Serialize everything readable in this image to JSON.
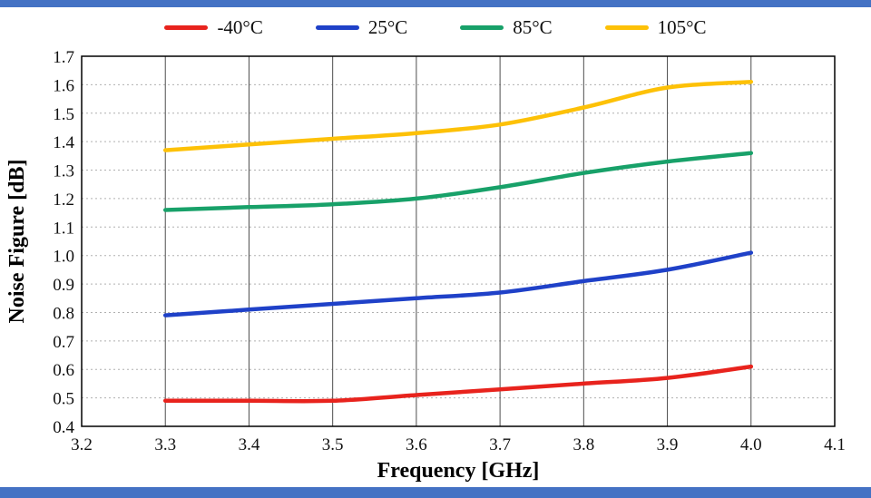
{
  "page": {
    "background": "#ffffff"
  },
  "colors": {
    "accent_bar": "#4472c4",
    "plot_border": "#000000",
    "grid_vertical": "#4d4d4d",
    "grid_horizontal": "#b0b0b0"
  },
  "chart_data": {
    "type": "line",
    "title": "",
    "xlabel": "Frequency [GHz]",
    "ylabel": "Noise Figure [dB]",
    "xlim": [
      3.2,
      4.1
    ],
    "ylim": [
      0.4,
      1.7
    ],
    "x_ticks": [
      3.2,
      3.3,
      3.4,
      3.5,
      3.6,
      3.7,
      3.8,
      3.9,
      4.0,
      4.1
    ],
    "y_ticks": [
      0.4,
      0.5,
      0.6,
      0.7,
      0.8,
      0.9,
      1.0,
      1.1,
      1.2,
      1.3,
      1.4,
      1.5,
      1.6,
      1.7
    ],
    "x": [
      3.3,
      3.4,
      3.5,
      3.6,
      3.7,
      3.8,
      3.9,
      4.0
    ],
    "legend_position": "top",
    "grid": {
      "vertical": "solid",
      "horizontal": "dashed"
    },
    "series": [
      {
        "name": "-40°C",
        "color": "#e8231d",
        "values": [
          0.49,
          0.49,
          0.49,
          0.51,
          0.53,
          0.55,
          0.57,
          0.61
        ]
      },
      {
        "name": "25°C",
        "color": "#1f41c8",
        "values": [
          0.79,
          0.81,
          0.83,
          0.85,
          0.87,
          0.91,
          0.95,
          1.01
        ]
      },
      {
        "name": "85°C",
        "color": "#18a169",
        "values": [
          1.16,
          1.17,
          1.18,
          1.2,
          1.24,
          1.29,
          1.33,
          1.36
        ]
      },
      {
        "name": "105°C",
        "color": "#fdc107",
        "values": [
          1.37,
          1.39,
          1.41,
          1.43,
          1.46,
          1.52,
          1.59,
          1.61
        ]
      }
    ]
  }
}
